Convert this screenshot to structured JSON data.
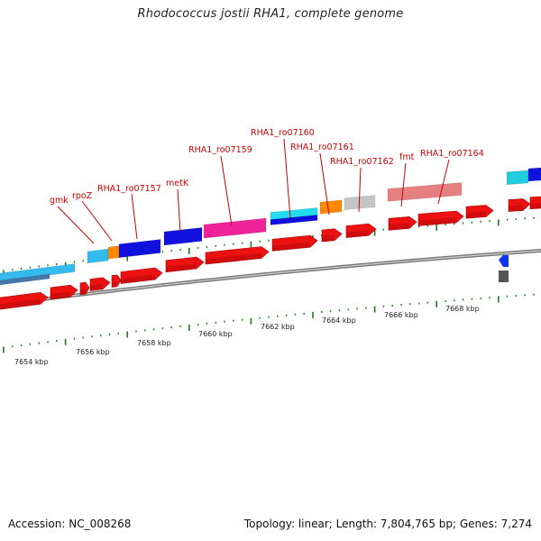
{
  "title": "Rhodococcus jostii RHA1, complete genome",
  "footer": {
    "accession": "Accession: NC_008268",
    "summary": "Topology: linear; Length: 7,804,765 bp; Genes: 7,274"
  },
  "colors": {
    "label": "#cc0000",
    "tick": "#1a7a1a",
    "backbone": "#8a8a8a",
    "cds_arrow": "#ee1111"
  },
  "gene_labels": [
    "gmk",
    "rpoZ",
    "RHA1_ro07157",
    "metK",
    "RHA1_ro07159",
    "RHA1_ro07160",
    "RHA1_ro07161",
    "RHA1_ro07162",
    "fmt",
    "RHA1_ro07164"
  ],
  "scale_labels": [
    "7654 kbp",
    "7656 kbp",
    "7658 kbp",
    "7660 kbp",
    "7662 kbp",
    "7664 kbp",
    "7666 kbp",
    "7668 kbp"
  ]
}
